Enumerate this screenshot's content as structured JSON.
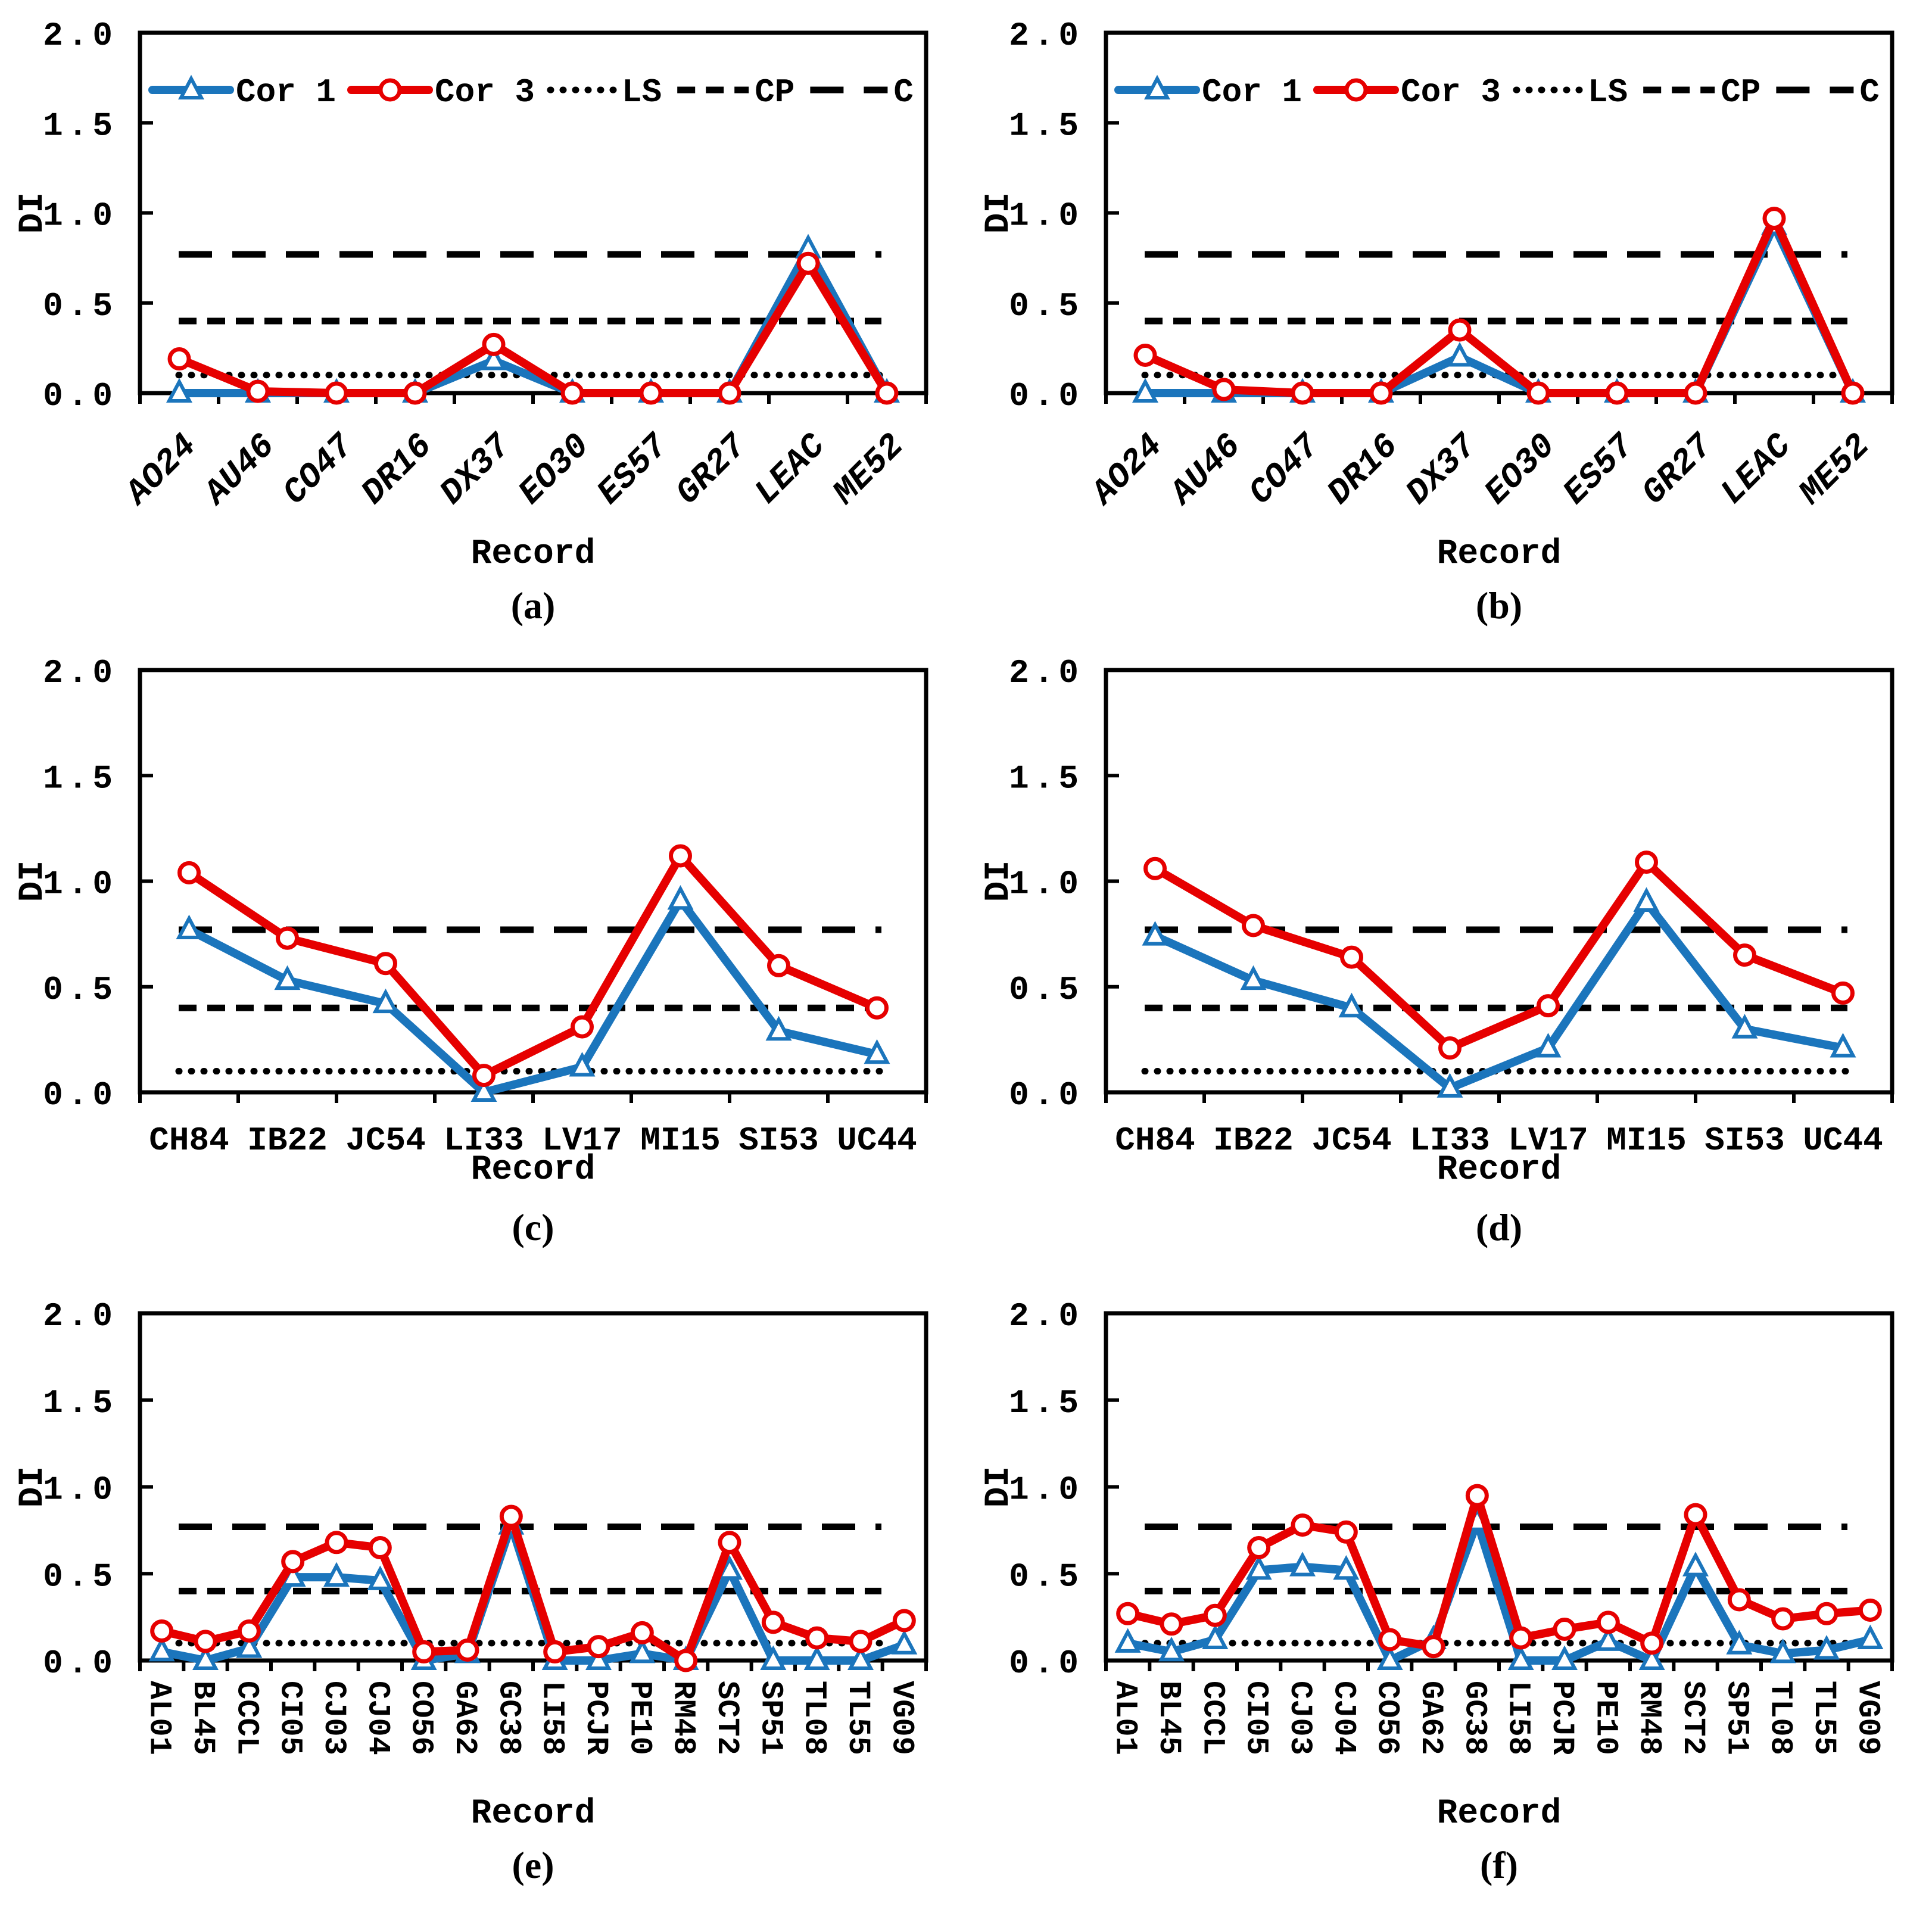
{
  "figure": {
    "ylabel": "DI",
    "xlabel": "Record",
    "yticks": [
      "0.0",
      "0.5",
      "1.0",
      "1.5",
      "2.0"
    ],
    "legend_labels": {
      "cor1": "Cor 1",
      "cor3": "Cor 3",
      "ls": "LS",
      "cp": "CP",
      "c": "C"
    },
    "colors": {
      "cor1_blue": "#1B75BC",
      "cor3_red": "#E60000",
      "reference_black": "#000000",
      "background": "#FFFFFF"
    }
  },
  "chart_data": [
    {
      "type": "line",
      "panel_letter": "(a)",
      "xlabel": "Record",
      "ylabel": "DI",
      "ylim": [
        0.0,
        2.0
      ],
      "ref_lines": {
        "LS": 0.1,
        "CP": 0.4,
        "C": 0.77
      },
      "legend": true,
      "legend_position": "top-inside",
      "xtick_rotation": 45,
      "grid": false,
      "categories": [
        "AO24",
        "AU46",
        "CO47",
        "DR16",
        "DX37",
        "EO30",
        "ES57",
        "GR27",
        "LEAC",
        "ME52"
      ],
      "series": [
        {
          "name": "Cor 1",
          "marker": "triangle",
          "color_key": "cor1_blue",
          "values": [
            0.0,
            0.0,
            0.0,
            0.0,
            0.18,
            0.0,
            0.0,
            0.0,
            0.8,
            0.0
          ]
        },
        {
          "name": "Cor 3",
          "marker": "circle",
          "color_key": "cor3_red",
          "values": [
            0.19,
            0.01,
            0.0,
            0.0,
            0.27,
            0.0,
            0.0,
            0.0,
            0.72,
            0.0
          ]
        }
      ]
    },
    {
      "type": "line",
      "panel_letter": "(b)",
      "xlabel": "Record",
      "ylabel": "DI",
      "ylim": [
        0.0,
        2.0
      ],
      "ref_lines": {
        "LS": 0.1,
        "CP": 0.4,
        "C": 0.77
      },
      "legend": true,
      "legend_position": "top-inside",
      "xtick_rotation": 45,
      "grid": false,
      "categories": [
        "AO24",
        "AU46",
        "CO47",
        "DR16",
        "DX37",
        "EO30",
        "ES57",
        "GR27",
        "LEAC",
        "ME52"
      ],
      "series": [
        {
          "name": "Cor 1",
          "marker": "triangle",
          "color_key": "cor1_blue",
          "values": [
            0.0,
            0.0,
            0.0,
            0.0,
            0.2,
            0.0,
            0.0,
            0.0,
            0.93,
            0.0
          ]
        },
        {
          "name": "Cor 3",
          "marker": "circle",
          "color_key": "cor3_red",
          "values": [
            0.21,
            0.02,
            0.0,
            0.0,
            0.35,
            0.0,
            0.0,
            0.0,
            0.97,
            0.0
          ]
        }
      ]
    },
    {
      "type": "line",
      "panel_letter": "(c)",
      "xlabel": "Record",
      "ylabel": "DI",
      "ylim": [
        0.0,
        2.0
      ],
      "ref_lines": {
        "LS": 0.1,
        "CP": 0.4,
        "C": 0.77
      },
      "legend": false,
      "xtick_rotation": 0,
      "grid": false,
      "categories": [
        "CH84",
        "IB22",
        "JC54",
        "LI33",
        "LV17",
        "MI15",
        "SI53",
        "UC44"
      ],
      "series": [
        {
          "name": "Cor 1",
          "marker": "triangle",
          "color_key": "cor1_blue",
          "values": [
            0.77,
            0.53,
            0.42,
            0.0,
            0.12,
            0.91,
            0.29,
            0.18
          ]
        },
        {
          "name": "Cor 3",
          "marker": "circle",
          "color_key": "cor3_red",
          "values": [
            1.04,
            0.73,
            0.61,
            0.08,
            0.31,
            1.12,
            0.6,
            0.4
          ]
        }
      ]
    },
    {
      "type": "line",
      "panel_letter": "(d)",
      "xlabel": "Record",
      "ylabel": "DI",
      "ylim": [
        0.0,
        2.0
      ],
      "ref_lines": {
        "LS": 0.1,
        "CP": 0.4,
        "C": 0.77
      },
      "legend": false,
      "xtick_rotation": 0,
      "grid": false,
      "categories": [
        "CH84",
        "IB22",
        "JC54",
        "LI33",
        "LV17",
        "MI15",
        "SI53",
        "UC44"
      ],
      "series": [
        {
          "name": "Cor 1",
          "marker": "triangle",
          "color_key": "cor1_blue",
          "values": [
            0.74,
            0.53,
            0.4,
            0.02,
            0.21,
            0.9,
            0.3,
            0.21
          ]
        },
        {
          "name": "Cor 3",
          "marker": "circle",
          "color_key": "cor3_red",
          "values": [
            1.06,
            0.79,
            0.64,
            0.21,
            0.41,
            1.09,
            0.65,
            0.47
          ]
        }
      ]
    },
    {
      "type": "line",
      "panel_letter": "(e)",
      "xlabel": "Record",
      "ylabel": "DI",
      "ylim": [
        0.0,
        2.0
      ],
      "ref_lines": {
        "LS": 0.1,
        "CP": 0.4,
        "C": 0.77
      },
      "legend": false,
      "xtick_rotation": 90,
      "grid": false,
      "categories": [
        "AL01",
        "BL45",
        "CCCL",
        "CI05",
        "CJ03",
        "CJ04",
        "CO56",
        "GA62",
        "GC38",
        "LI58",
        "PCJR",
        "PE10",
        "RM48",
        "SCT2",
        "SP51",
        "TL08",
        "TL55",
        "VG09"
      ],
      "series": [
        {
          "name": "Cor 1",
          "marker": "triangle",
          "color_key": "cor1_blue",
          "values": [
            0.05,
            0.0,
            0.07,
            0.48,
            0.48,
            0.46,
            0.0,
            0.04,
            0.78,
            0.0,
            0.0,
            0.04,
            0.0,
            0.52,
            0.0,
            0.0,
            0.0,
            0.09
          ]
        },
        {
          "name": "Cor 3",
          "marker": "circle",
          "color_key": "cor3_red",
          "values": [
            0.17,
            0.11,
            0.17,
            0.57,
            0.68,
            0.65,
            0.05,
            0.06,
            0.83,
            0.05,
            0.08,
            0.16,
            0.0,
            0.68,
            0.22,
            0.13,
            0.11,
            0.23
          ]
        }
      ]
    },
    {
      "type": "line",
      "panel_letter": "(f)",
      "xlabel": "Record",
      "ylabel": "DI",
      "ylim": [
        0.0,
        2.0
      ],
      "ref_lines": {
        "LS": 0.1,
        "CP": 0.4,
        "C": 0.77
      },
      "legend": false,
      "xtick_rotation": 90,
      "grid": false,
      "categories": [
        "AL01",
        "BL45",
        "CCCL",
        "CI05",
        "CJ03",
        "CJ04",
        "CO56",
        "GA62",
        "GC38",
        "LI58",
        "PCJR",
        "PE10",
        "RM48",
        "SCT2",
        "SP51",
        "TL08",
        "TL55",
        "VG09"
      ],
      "series": [
        {
          "name": "Cor 1",
          "marker": "triangle",
          "color_key": "cor1_blue",
          "values": [
            0.1,
            0.05,
            0.12,
            0.52,
            0.54,
            0.52,
            0.0,
            0.12,
            0.8,
            0.0,
            0.0,
            0.11,
            0.0,
            0.54,
            0.09,
            0.04,
            0.06,
            0.12
          ]
        },
        {
          "name": "Cor 3",
          "marker": "circle",
          "color_key": "cor3_red",
          "values": [
            0.27,
            0.21,
            0.26,
            0.65,
            0.78,
            0.74,
            0.12,
            0.08,
            0.95,
            0.13,
            0.18,
            0.22,
            0.1,
            0.84,
            0.35,
            0.24,
            0.27,
            0.29
          ]
        }
      ]
    }
  ]
}
